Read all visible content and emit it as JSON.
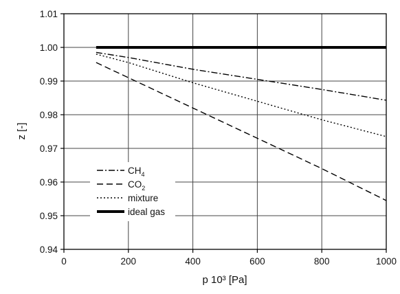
{
  "chart_data": {
    "type": "line",
    "xlabel": "p 10³ [Pa]",
    "ylabel": "z [-]",
    "xlim": [
      0,
      1000
    ],
    "ylim": [
      0.94,
      1.01
    ],
    "xticks": [
      0,
      200,
      400,
      600,
      800,
      1000
    ],
    "yticks": [
      0.94,
      0.95,
      0.96,
      0.97,
      0.98,
      0.99,
      1.0,
      1.01
    ],
    "xtick_labels": [
      "0",
      "200",
      "400",
      "600",
      "800",
      "1000"
    ],
    "ytick_labels": [
      "0.94",
      "0.95",
      "0.96",
      "0.97",
      "0.98",
      "0.99",
      "1.00",
      "1.01"
    ],
    "grid": true,
    "legend_position": "lower-left",
    "series": [
      {
        "name": "CH4",
        "legend_main": "CH",
        "legend_sub": "4",
        "style": "dashdot",
        "color": "#000000",
        "x": [
          100,
          200,
          400,
          600,
          800,
          1000
        ],
        "y": [
          0.9985,
          0.997,
          0.9935,
          0.9905,
          0.9875,
          0.9843
        ]
      },
      {
        "name": "CO2",
        "legend_main": "CO",
        "legend_sub": "2",
        "style": "dashed",
        "color": "#000000",
        "x": [
          100,
          200,
          400,
          600,
          800,
          1000
        ],
        "y": [
          0.9955,
          0.991,
          0.982,
          0.973,
          0.964,
          0.9545
        ]
      },
      {
        "name": "mixture",
        "legend_main": "mixture",
        "legend_sub": "",
        "style": "dotted",
        "color": "#000000",
        "x": [
          100,
          200,
          400,
          600,
          800,
          1000
        ],
        "y": [
          0.998,
          0.9955,
          0.9895,
          0.984,
          0.9785,
          0.9735
        ]
      },
      {
        "name": "ideal gas",
        "legend_main": "ideal gas",
        "legend_sub": "",
        "style": "solid-thick",
        "color": "#000000",
        "x": [
          100,
          1000
        ],
        "y": [
          1.0,
          1.0
        ]
      }
    ]
  }
}
